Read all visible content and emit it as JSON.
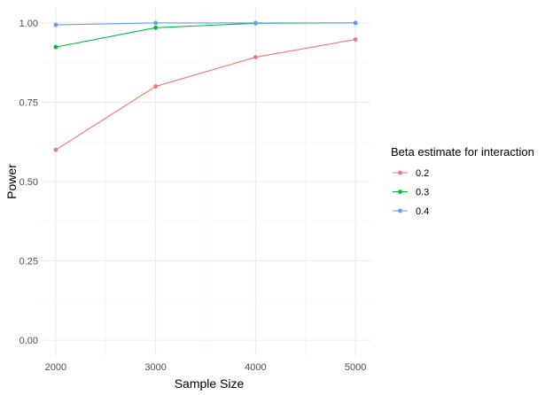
{
  "chart_data": {
    "type": "line",
    "x": [
      2000,
      3000,
      4000,
      5000
    ],
    "xlabel": "Sample Size",
    "ylabel": "Power",
    "x_ticks": [
      "2000",
      "3000",
      "4000",
      "5000"
    ],
    "y_ticks": [
      "0.00",
      "0.25",
      "0.50",
      "0.75",
      "1.00"
    ],
    "xlim": [
      2000,
      5000
    ],
    "ylim": [
      0,
      1
    ],
    "grid": true,
    "legend": {
      "title": "Beta estimate for interaction",
      "placement": "right"
    },
    "series": [
      {
        "name": "0.2",
        "color": "#f8766d",
        "values": [
          0.6,
          0.8,
          0.892,
          0.948
        ]
      },
      {
        "name": "0.3",
        "color": "#00ba38",
        "values": [
          0.924,
          0.985,
          0.999,
          1.0
        ]
      },
      {
        "name": "0.4",
        "color": "#619cff",
        "values": [
          0.994,
          1.0,
          1.0,
          1.0
        ]
      }
    ]
  }
}
